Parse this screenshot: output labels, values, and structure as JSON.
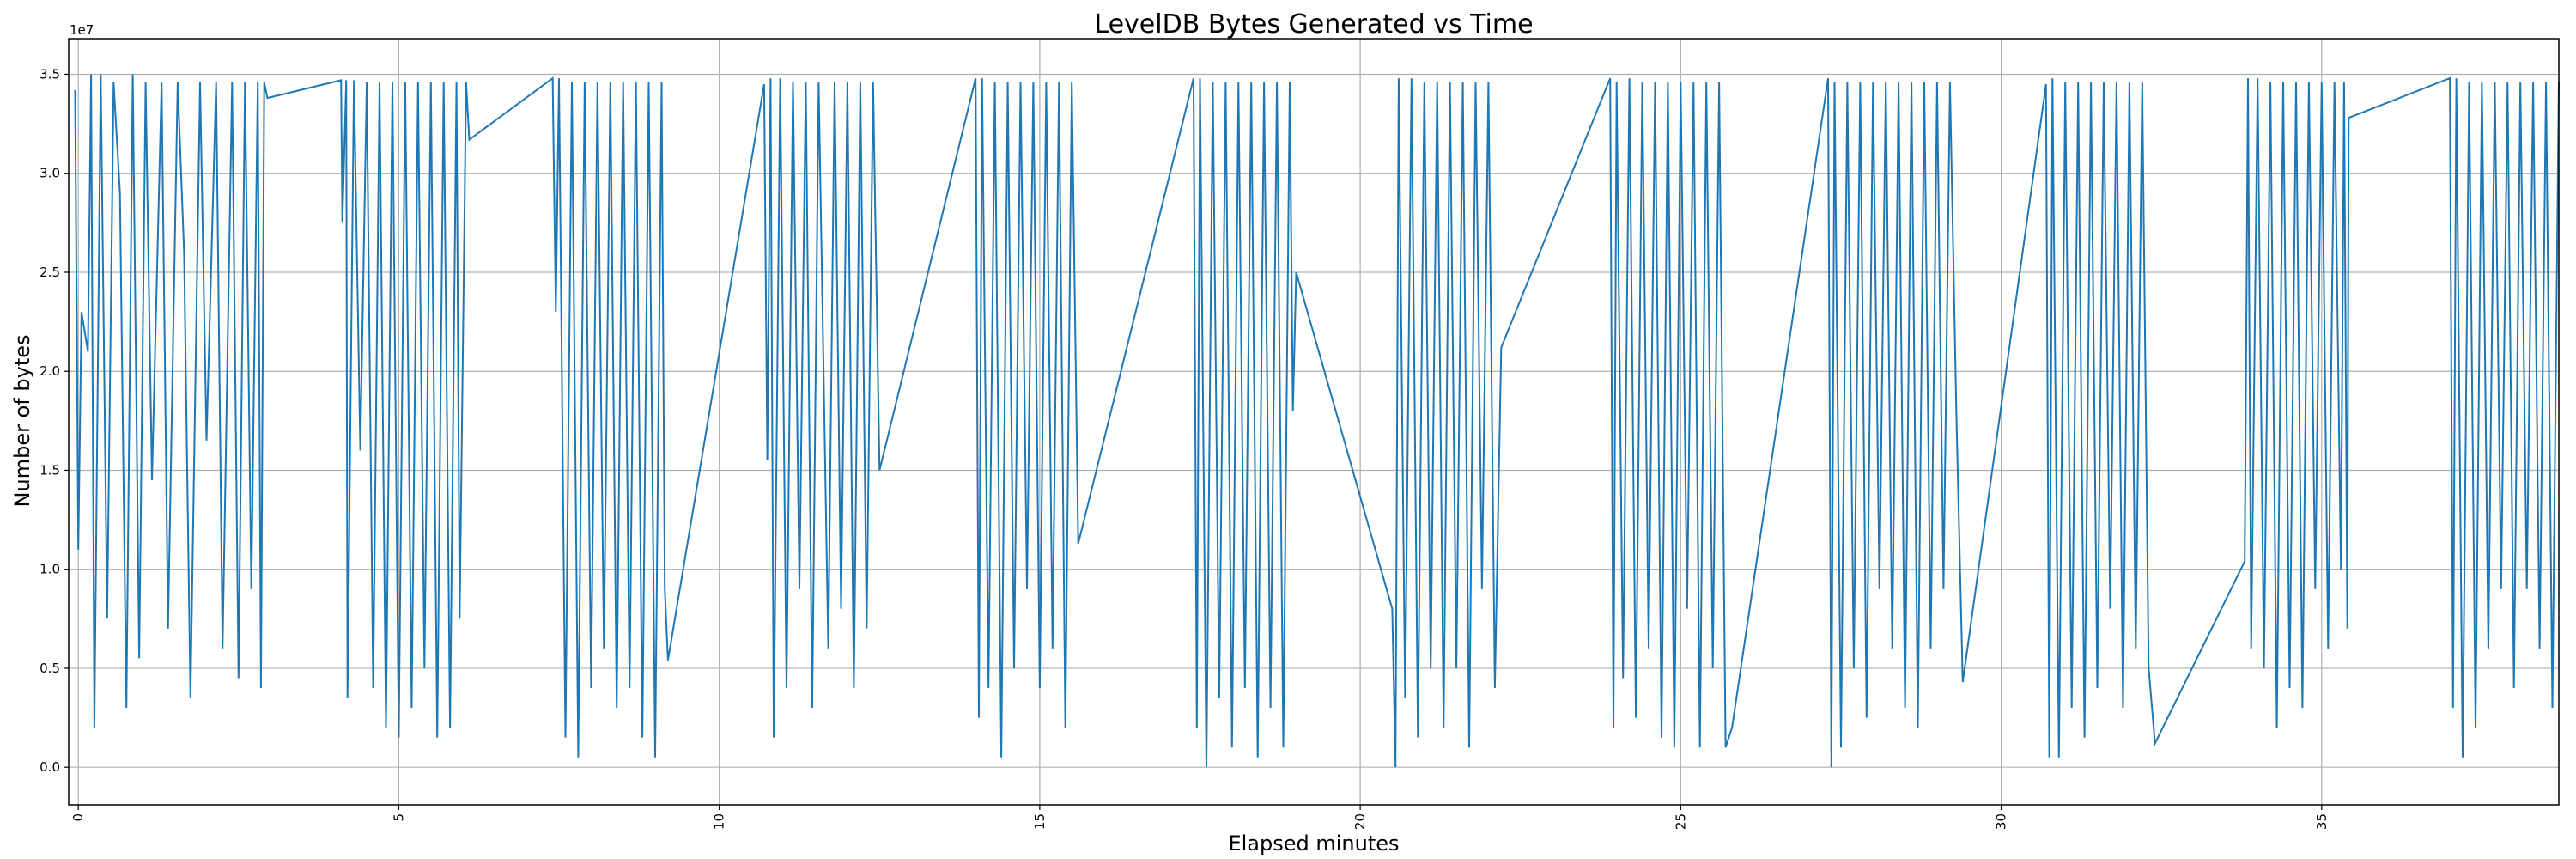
{
  "chart_data": {
    "type": "line",
    "title": "LevelDB Bytes Generated vs Time",
    "xlabel": "Elapsed minutes",
    "ylabel": "Number of bytes",
    "y_offset_label": "1e7",
    "y_multiplier": 10000000,
    "xlim": [
      -0.15,
      38.7
    ],
    "ylim": [
      -0.19,
      3.68
    ],
    "xticks": [
      "0",
      "5",
      "10",
      "15",
      "20",
      "25",
      "30",
      "35"
    ],
    "yticks": [
      "0.0",
      "0.5",
      "1.0",
      "1.5",
      "2.0",
      "2.5",
      "3.0",
      "3.5"
    ],
    "grid": true,
    "color": "#1f77b4",
    "series": [
      {
        "points": [
          [
            -0.05,
            3.42
          ],
          [
            0.0,
            1.1
          ],
          [
            0.05,
            2.3
          ],
          [
            0.15,
            2.1
          ],
          [
            0.2,
            3.5
          ],
          [
            0.25,
            0.2
          ],
          [
            0.35,
            3.5
          ],
          [
            0.45,
            0.75
          ],
          [
            0.55,
            3.46
          ],
          [
            0.65,
            2.9
          ],
          [
            0.75,
            0.3
          ],
          [
            0.85,
            3.5
          ],
          [
            0.95,
            0.55
          ],
          [
            1.05,
            3.46
          ],
          [
            1.15,
            1.45
          ],
          [
            1.3,
            3.46
          ],
          [
            1.4,
            0.7
          ],
          [
            1.55,
            3.46
          ],
          [
            1.65,
            2.6
          ],
          [
            1.75,
            0.35
          ],
          [
            1.9,
            3.46
          ],
          [
            2.0,
            1.65
          ],
          [
            2.15,
            3.46
          ],
          [
            2.25,
            0.6
          ],
          [
            2.4,
            3.46
          ],
          [
            2.5,
            0.45
          ],
          [
            2.6,
            3.46
          ],
          [
            2.7,
            0.9
          ],
          [
            2.8,
            3.46
          ],
          [
            2.85,
            0.4
          ],
          [
            2.9,
            3.46
          ],
          [
            2.95,
            3.38
          ],
          [
            4.1,
            3.47
          ],
          [
            4.12,
            2.75
          ],
          [
            4.18,
            3.47
          ],
          [
            4.2,
            0.35
          ],
          [
            4.3,
            3.47
          ],
          [
            4.4,
            1.6
          ],
          [
            4.5,
            3.46
          ],
          [
            4.6,
            0.4
          ],
          [
            4.7,
            3.46
          ],
          [
            4.8,
            0.2
          ],
          [
            4.9,
            3.46
          ],
          [
            5.0,
            0.15
          ],
          [
            5.1,
            3.46
          ],
          [
            5.2,
            0.3
          ],
          [
            5.3,
            3.46
          ],
          [
            5.4,
            0.5
          ],
          [
            5.5,
            3.46
          ],
          [
            5.6,
            0.15
          ],
          [
            5.7,
            3.46
          ],
          [
            5.8,
            0.2
          ],
          [
            5.9,
            3.46
          ],
          [
            5.95,
            0.75
          ],
          [
            6.05,
            3.46
          ],
          [
            6.1,
            3.17
          ],
          [
            7.4,
            3.48
          ],
          [
            7.45,
            2.3
          ],
          [
            7.5,
            3.48
          ],
          [
            7.6,
            0.15
          ],
          [
            7.7,
            3.46
          ],
          [
            7.8,
            0.05
          ],
          [
            7.9,
            3.46
          ],
          [
            8.0,
            0.4
          ],
          [
            8.1,
            3.46
          ],
          [
            8.2,
            0.6
          ],
          [
            8.3,
            3.46
          ],
          [
            8.4,
            0.3
          ],
          [
            8.5,
            3.46
          ],
          [
            8.6,
            0.4
          ],
          [
            8.7,
            3.46
          ],
          [
            8.8,
            0.15
          ],
          [
            8.9,
            3.46
          ],
          [
            9.0,
            0.05
          ],
          [
            9.1,
            3.46
          ],
          [
            9.15,
            0.9
          ],
          [
            9.2,
            0.54
          ],
          [
            10.7,
            3.45
          ],
          [
            10.75,
            1.55
          ],
          [
            10.8,
            3.48
          ],
          [
            10.85,
            0.15
          ],
          [
            10.95,
            3.48
          ],
          [
            11.05,
            0.4
          ],
          [
            11.15,
            3.46
          ],
          [
            11.25,
            0.9
          ],
          [
            11.35,
            3.46
          ],
          [
            11.45,
            0.3
          ],
          [
            11.55,
            3.46
          ],
          [
            11.7,
            0.6
          ],
          [
            11.8,
            3.46
          ],
          [
            11.9,
            0.8
          ],
          [
            12.0,
            3.46
          ],
          [
            12.1,
            0.4
          ],
          [
            12.2,
            3.46
          ],
          [
            12.3,
            0.7
          ],
          [
            12.4,
            3.46
          ],
          [
            12.5,
            1.5
          ],
          [
            14.0,
            3.48
          ],
          [
            14.05,
            0.25
          ],
          [
            14.1,
            3.48
          ],
          [
            14.2,
            0.4
          ],
          [
            14.3,
            3.46
          ],
          [
            14.4,
            0.05
          ],
          [
            14.5,
            3.46
          ],
          [
            14.6,
            0.5
          ],
          [
            14.7,
            3.46
          ],
          [
            14.8,
            0.9
          ],
          [
            14.9,
            3.46
          ],
          [
            15.0,
            0.4
          ],
          [
            15.1,
            3.46
          ],
          [
            15.2,
            0.6
          ],
          [
            15.3,
            3.46
          ],
          [
            15.4,
            0.2
          ],
          [
            15.5,
            3.46
          ],
          [
            15.6,
            1.13
          ],
          [
            17.4,
            3.48
          ],
          [
            17.45,
            0.2
          ],
          [
            17.5,
            3.48
          ],
          [
            17.6,
            0.0
          ],
          [
            17.7,
            3.46
          ],
          [
            17.8,
            0.35
          ],
          [
            17.9,
            3.46
          ],
          [
            18.0,
            0.1
          ],
          [
            18.1,
            3.46
          ],
          [
            18.2,
            0.4
          ],
          [
            18.3,
            3.46
          ],
          [
            18.4,
            0.05
          ],
          [
            18.5,
            3.46
          ],
          [
            18.6,
            0.3
          ],
          [
            18.7,
            3.46
          ],
          [
            18.8,
            0.1
          ],
          [
            18.9,
            3.46
          ],
          [
            18.95,
            1.8
          ],
          [
            19.0,
            2.5
          ],
          [
            20.5,
            0.8
          ],
          [
            20.55,
            0.0
          ],
          [
            20.6,
            3.48
          ],
          [
            20.7,
            0.35
          ],
          [
            20.8,
            3.48
          ],
          [
            20.9,
            0.15
          ],
          [
            21.0,
            3.46
          ],
          [
            21.1,
            0.5
          ],
          [
            21.2,
            3.46
          ],
          [
            21.3,
            0.2
          ],
          [
            21.4,
            3.46
          ],
          [
            21.5,
            0.5
          ],
          [
            21.6,
            3.46
          ],
          [
            21.7,
            0.1
          ],
          [
            21.8,
            3.46
          ],
          [
            21.9,
            0.9
          ],
          [
            22.0,
            3.46
          ],
          [
            22.1,
            0.4
          ],
          [
            22.2,
            2.12
          ],
          [
            23.9,
            3.48
          ],
          [
            23.95,
            0.2
          ],
          [
            24.0,
            3.46
          ],
          [
            24.1,
            0.45
          ],
          [
            24.2,
            3.48
          ],
          [
            24.3,
            0.25
          ],
          [
            24.4,
            3.46
          ],
          [
            24.5,
            0.6
          ],
          [
            24.6,
            3.46
          ],
          [
            24.7,
            0.15
          ],
          [
            24.8,
            3.46
          ],
          [
            24.9,
            0.1
          ],
          [
            25.0,
            3.46
          ],
          [
            25.1,
            0.8
          ],
          [
            25.2,
            3.46
          ],
          [
            25.3,
            0.1
          ],
          [
            25.4,
            3.46
          ],
          [
            25.5,
            0.5
          ],
          [
            25.6,
            3.46
          ],
          [
            25.7,
            0.1
          ],
          [
            25.8,
            0.2
          ],
          [
            27.3,
            3.48
          ],
          [
            27.35,
            0.0
          ],
          [
            27.4,
            3.46
          ],
          [
            27.5,
            0.1
          ],
          [
            27.6,
            3.46
          ],
          [
            27.7,
            0.5
          ],
          [
            27.8,
            3.46
          ],
          [
            27.9,
            0.25
          ],
          [
            28.0,
            3.46
          ],
          [
            28.1,
            0.9
          ],
          [
            28.2,
            3.46
          ],
          [
            28.3,
            0.6
          ],
          [
            28.4,
            3.46
          ],
          [
            28.5,
            0.3
          ],
          [
            28.6,
            3.46
          ],
          [
            28.7,
            0.2
          ],
          [
            28.8,
            3.46
          ],
          [
            28.9,
            0.6
          ],
          [
            29.0,
            3.46
          ],
          [
            29.1,
            0.9
          ],
          [
            29.2,
            3.46
          ],
          [
            29.3,
            1.8
          ],
          [
            29.4,
            0.43
          ],
          [
            30.7,
            3.45
          ],
          [
            30.75,
            0.05
          ],
          [
            30.8,
            3.48
          ],
          [
            30.9,
            0.05
          ],
          [
            31.0,
            3.46
          ],
          [
            31.1,
            0.3
          ],
          [
            31.2,
            3.46
          ],
          [
            31.3,
            0.15
          ],
          [
            31.4,
            3.46
          ],
          [
            31.5,
            0.4
          ],
          [
            31.6,
            3.46
          ],
          [
            31.7,
            0.8
          ],
          [
            31.8,
            3.46
          ],
          [
            31.9,
            0.3
          ],
          [
            32.0,
            3.46
          ],
          [
            32.1,
            0.6
          ],
          [
            32.2,
            3.46
          ],
          [
            32.3,
            0.5
          ],
          [
            32.4,
            0.12
          ],
          [
            33.8,
            1.04
          ],
          [
            33.85,
            3.48
          ],
          [
            33.9,
            0.6
          ],
          [
            34.0,
            3.48
          ],
          [
            34.1,
            0.5
          ],
          [
            34.2,
            3.46
          ],
          [
            34.3,
            0.2
          ],
          [
            34.4,
            3.46
          ],
          [
            34.5,
            0.4
          ],
          [
            34.6,
            3.46
          ],
          [
            34.7,
            0.3
          ],
          [
            34.8,
            3.46
          ],
          [
            34.9,
            0.9
          ],
          [
            35.0,
            3.46
          ],
          [
            35.1,
            0.6
          ],
          [
            35.2,
            3.46
          ],
          [
            35.3,
            1.0
          ],
          [
            35.35,
            3.46
          ],
          [
            35.4,
            0.7
          ],
          [
            35.42,
            3.28
          ],
          [
            37.0,
            3.48
          ],
          [
            37.05,
            0.3
          ],
          [
            37.1,
            3.48
          ],
          [
            37.2,
            0.05
          ],
          [
            37.3,
            3.46
          ],
          [
            37.4,
            0.2
          ],
          [
            37.5,
            3.46
          ],
          [
            37.6,
            0.6
          ],
          [
            37.7,
            3.46
          ],
          [
            37.8,
            0.9
          ],
          [
            37.9,
            3.46
          ],
          [
            38.0,
            0.4
          ],
          [
            38.1,
            3.46
          ],
          [
            38.2,
            0.9
          ],
          [
            38.3,
            3.46
          ],
          [
            38.4,
            0.6
          ],
          [
            38.5,
            3.46
          ],
          [
            38.6,
            0.3
          ],
          [
            38.7,
            3.46
          ]
        ]
      }
    ]
  }
}
